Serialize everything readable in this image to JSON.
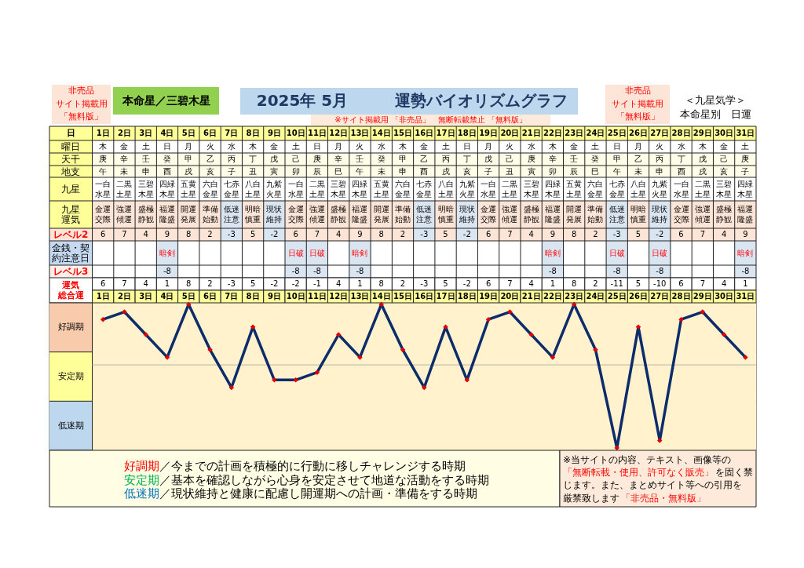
{
  "chart_data": [
    {
      "type": "other",
      "title": "2025年 5月　　　運勢バイオリズムグラフ",
      "annotations": [
        "非売品",
        "サイト掲載用",
        "「無料版」",
        "本命星／三碧木星",
        "※サイト掲載用 「非売品」　無断転載禁止 「無料版」",
        "非売品",
        "サイト掲載用",
        "「無料版」",
        "＜九星気学＞",
        "本命星別　日運"
      ]
    },
    {
      "type": "heatmap",
      "ylabel": "日",
      "categories": [
        "1日",
        "2日",
        "3日",
        "4日",
        "5日",
        "6日",
        "7日",
        "8日",
        "9日",
        "10日",
        "11日",
        "12日",
        "13日",
        "14日",
        "15日",
        "16日",
        "17日",
        "18日",
        "19日",
        "20日",
        "21日",
        "22日",
        "23日",
        "24日",
        "25日",
        "26日",
        "27日",
        "28日",
        "29日",
        "30日",
        "31日"
      ],
      "y_categories": [
        "曜日",
        "天干",
        "地支",
        "九星",
        "九星運気",
        "レベル2",
        "金銭・契約注意日",
        "レベル3"
      ],
      "cells": [
        [
          null,
          null,
          null,
          null,
          null,
          null,
          null,
          null,
          null,
          null,
          null,
          null,
          null,
          null,
          null,
          null,
          null,
          null,
          null,
          null,
          null,
          null,
          null,
          null,
          null,
          null,
          null,
          null,
          null,
          null,
          null
        ],
        [
          null,
          null,
          null,
          null,
          null,
          null,
          null,
          null,
          null,
          null,
          null,
          null,
          null,
          null,
          null,
          null,
          null,
          null,
          null,
          null,
          null,
          null,
          null,
          null,
          null,
          null,
          null,
          null,
          null,
          null,
          null
        ],
        [
          null,
          null,
          null,
          null,
          null,
          null,
          null,
          null,
          null,
          null,
          null,
          null,
          null,
          null,
          null,
          null,
          null,
          null,
          null,
          null,
          null,
          null,
          null,
          null,
          null,
          null,
          null,
          null,
          null,
          null,
          null
        ],
        [
          null,
          null,
          null,
          null,
          null,
          null,
          null,
          null,
          null,
          null,
          null,
          null,
          null,
          null,
          null,
          null,
          null,
          null,
          null,
          null,
          null,
          null,
          null,
          null,
          null,
          null,
          null,
          null,
          null,
          null,
          null
        ],
        [
          null,
          null,
          null,
          null,
          null,
          null,
          null,
          null,
          null,
          null,
          null,
          null,
          null,
          null,
          null,
          null,
          null,
          null,
          null,
          null,
          null,
          null,
          null,
          null,
          null,
          null,
          null,
          null,
          null,
          null,
          null
        ],
        [
          null,
          null,
          null,
          null,
          null,
          null,
          null,
          null,
          null,
          null,
          null,
          null,
          null,
          null,
          null,
          null,
          null,
          null,
          null,
          null,
          null,
          null,
          null,
          null,
          null,
          null,
          null,
          null,
          null,
          null,
          null
        ],
        [
          null,
          null,
          null,
          null,
          null,
          null,
          null,
          null,
          null,
          null,
          null,
          null,
          null,
          null,
          null,
          null,
          null,
          null,
          null,
          null,
          null,
          null,
          null,
          null,
          null,
          null,
          null,
          null,
          null,
          null,
          null
        ],
        [
          null,
          null,
          null,
          null,
          null,
          null,
          null,
          null,
          null,
          null,
          null,
          null,
          null,
          null,
          null,
          null,
          null,
          null,
          null,
          null,
          null,
          null,
          null,
          null,
          null,
          null,
          null,
          null,
          null,
          null,
          null
        ]
      ],
      "cell_labels": [
        [
          "木",
          "金",
          "土",
          "日",
          "月",
          "火",
          "水",
          "木",
          "金",
          "土",
          "日",
          "月",
          "火",
          "水",
          "木",
          "金",
          "土",
          "日",
          "月",
          "火",
          "水",
          "木",
          "金",
          "土",
          "日",
          "月",
          "火",
          "水",
          "木",
          "金",
          "土"
        ],
        [
          "庚",
          "辛",
          "壬",
          "癸",
          "甲",
          "乙",
          "丙",
          "丁",
          "戊",
          "己",
          "庚",
          "辛",
          "壬",
          "癸",
          "甲",
          "乙",
          "丙",
          "丁",
          "戊",
          "己",
          "庚",
          "辛",
          "壬",
          "癸",
          "甲",
          "乙",
          "丙",
          "丁",
          "戊",
          "己",
          "庚"
        ],
        [
          "午",
          "未",
          "申",
          "酉",
          "戌",
          "亥",
          "子",
          "丑",
          "寅",
          "卯",
          "辰",
          "巳",
          "午",
          "未",
          "申",
          "酉",
          "戌",
          "亥",
          "子",
          "丑",
          "寅",
          "卯",
          "辰",
          "巳",
          "午",
          "未",
          "申",
          "酉",
          "戌",
          "亥",
          "子"
        ],
        [
          "一白水星",
          "二黒土星",
          "三碧木星",
          "四緑木星",
          "五黄土星",
          "六白金星",
          "七赤金星",
          "八白土星",
          "九紫火星",
          "一白水星",
          "二黒土星",
          "三碧木星",
          "四緑木星",
          "五黄土星",
          "六白金星",
          "七赤金星",
          "八白土星",
          "九紫火星",
          "一白水星",
          "二黒土星",
          "三碧木星",
          "四緑木星",
          "五黄土星",
          "六白金星",
          "七赤金星",
          "八白土星",
          "九紫火星",
          "一白水星",
          "二黒土星",
          "三碧木星",
          "四緑木星"
        ],
        [
          "金運交際",
          "強運傾運",
          "盛極静観",
          "福運隆盛",
          "開運発展",
          "準備始動",
          "低迷注意",
          "明暗慎重",
          "現状維持",
          "金運交際",
          "強運傾運",
          "盛極静観",
          "福運隆盛",
          "開運発展",
          "準備始動",
          "低迷注意",
          "明暗慎重",
          "現状維持",
          "金運交際",
          "強運傾運",
          "盛極静観",
          "福運隆盛",
          "開運発展",
          "準備始動",
          "低迷注意",
          "明暗慎重",
          "現状維持",
          "金運交際",
          "強運傾運",
          "盛極静観",
          "福運隆盛"
        ],
        [
          "6",
          "7",
          "4",
          "9",
          "8",
          "2",
          "-3",
          "5",
          "-2",
          "6",
          "7",
          "4",
          "9",
          "8",
          "2",
          "-3",
          "5",
          "-2",
          "6",
          "7",
          "4",
          "9",
          "8",
          "2",
          "-3",
          "5",
          "-2",
          "6",
          "7",
          "4",
          "9"
        ],
        [
          null,
          null,
          null,
          "暗剣",
          null,
          null,
          null,
          null,
          null,
          "日破",
          "日破",
          null,
          "暗剣",
          null,
          null,
          null,
          null,
          null,
          null,
          null,
          null,
          "暗剣",
          null,
          null,
          "日破",
          null,
          "日破",
          null,
          null,
          null,
          "暗剣"
        ],
        [
          null,
          null,
          null,
          "-8",
          null,
          null,
          null,
          null,
          null,
          "-8",
          "-8",
          null,
          "-8",
          null,
          null,
          null,
          null,
          null,
          null,
          null,
          null,
          "-8",
          null,
          null,
          "-8",
          null,
          "-8",
          null,
          null,
          null,
          "-8"
        ]
      ],
      "colors": [
        [
          "#ffffff",
          "#ffffff",
          "#ffffff",
          "#ffffff",
          "#ffffff",
          "#ffffff",
          "#ffffff",
          "#ffffff",
          "#ffffff",
          "#ffffff",
          "#ffffff",
          "#ffffff",
          "#ffffff",
          "#ffffff",
          "#ffffff",
          "#ffffff",
          "#ffffff",
          "#ffffff",
          "#ffffff",
          "#ffffff",
          "#ffffff",
          "#ffffff",
          "#ffffff",
          "#ffffff",
          "#ffffff",
          "#ffffff",
          "#ffffff",
          "#ffffff",
          "#ffffff",
          "#ffffff",
          "#ffffff"
        ],
        [
          "#fffde8",
          "#fffde8",
          "#fffde8",
          "#fffde8",
          "#fffde8",
          "#fffde8",
          "#fffde8",
          "#fffde8",
          "#fffde8",
          "#fffde8",
          "#fffde8",
          "#fffde8",
          "#fffde8",
          "#fffde8",
          "#fffde8",
          "#fffde8",
          "#fffde8",
          "#fffde8",
          "#fffde8",
          "#fffde8",
          "#fffde8",
          "#fffde8",
          "#fffde8",
          "#fffde8",
          "#fffde8",
          "#fffde8",
          "#fffde8",
          "#fffde8",
          "#fffde8",
          "#fffde8",
          "#fffde8"
        ],
        [
          "#fffde8",
          "#fffde8",
          "#fffde8",
          "#fffde8",
          "#fffde8",
          "#fffde8",
          "#fffde8",
          "#fffde8",
          "#fffde8",
          "#fffde8",
          "#fffde8",
          "#fffde8",
          "#fffde8",
          "#fffde8",
          "#fffde8",
          "#fffde8",
          "#fffde8",
          "#fffde8",
          "#fffde8",
          "#fffde8",
          "#fffde8",
          "#fffde8",
          "#fffde8",
          "#fffde8",
          "#fffde8",
          "#fffde8",
          "#fffde8",
          "#fffde8",
          "#fffde8",
          "#fffde8",
          "#fffde8"
        ],
        [
          "#ffffff",
          "#ffffff",
          "#ffffff",
          "#ffffff",
          "#ffffff",
          "#ffffff",
          "#ffffff",
          "#ffffff",
          "#ffffff",
          "#ffffff",
          "#ffffff",
          "#ffffff",
          "#ffffff",
          "#ffffff",
          "#ffffff",
          "#ffffff",
          "#ffffff",
          "#ffffff",
          "#ffffff",
          "#ffffff",
          "#ffffff",
          "#ffffff",
          "#ffffff",
          "#ffffff",
          "#ffffff",
          "#ffffff",
          "#ffffff",
          "#ffffff",
          "#ffffff",
          "#ffffff",
          "#ffffff"
        ],
        [
          "#fce4d6",
          "#fce4d6",
          "#fce4d6",
          "#fce4d6",
          "#fce4d6",
          "#fce4d6",
          "#dae5f2",
          "#fce4d6",
          "#dae5f2",
          "#fce4d6",
          "#fce4d6",
          "#fce4d6",
          "#fce4d6",
          "#fce4d6",
          "#fce4d6",
          "#dae5f2",
          "#fce4d6",
          "#dae5f2",
          "#fce4d6",
          "#fce4d6",
          "#fce4d6",
          "#fce4d6",
          "#fce4d6",
          "#fce4d6",
          "#dae5f2",
          "#fce4d6",
          "#dae5f2",
          "#fce4d6",
          "#fce4d6",
          "#fce4d6",
          "#fce4d6"
        ],
        [
          "#fce4d6",
          "#fce4d6",
          "#fce4d6",
          "#fce4d6",
          "#fce4d6",
          "#fce4d6",
          "#dae5f2",
          "#fce4d6",
          "#dae5f2",
          "#fce4d6",
          "#fce4d6",
          "#fce4d6",
          "#fce4d6",
          "#fce4d6",
          "#fce4d6",
          "#dae5f2",
          "#fce4d6",
          "#dae5f2",
          "#fce4d6",
          "#fce4d6",
          "#fce4d6",
          "#fce4d6",
          "#fce4d6",
          "#fce4d6",
          "#dae5f2",
          "#fce4d6",
          "#dae5f2",
          "#fce4d6",
          "#fce4d6",
          "#fce4d6",
          "#fce4d6"
        ],
        [
          "#ffffff",
          "#ffffff",
          "#ffffff",
          "#dae5f2",
          "#ffffff",
          "#ffffff",
          "#ffffff",
          "#ffffff",
          "#ffffff",
          "#dae5f2",
          "#dae5f2",
          "#ffffff",
          "#dae5f2",
          "#ffffff",
          "#ffffff",
          "#ffffff",
          "#ffffff",
          "#ffffff",
          "#ffffff",
          "#ffffff",
          "#ffffff",
          "#dae5f2",
          "#ffffff",
          "#ffffff",
          "#dae5f2",
          "#ffffff",
          "#dae5f2",
          "#ffffff",
          "#ffffff",
          "#ffffff",
          "#dae5f2"
        ],
        [
          "#ffffff",
          "#ffffff",
          "#ffffff",
          "#dae5f2",
          "#ffffff",
          "#ffffff",
          "#ffffff",
          "#ffffff",
          "#ffffff",
          "#dae5f2",
          "#dae5f2",
          "#ffffff",
          "#dae5f2",
          "#ffffff",
          "#ffffff",
          "#ffffff",
          "#ffffff",
          "#ffffff",
          "#ffffff",
          "#ffffff",
          "#ffffff",
          "#dae5f2",
          "#ffffff",
          "#ffffff",
          "#dae5f2",
          "#ffffff",
          "#dae5f2",
          "#ffffff",
          "#ffffff",
          "#ffffff",
          "#dae5f2"
        ]
      ]
    },
    {
      "type": "line",
      "ylabel": "運気総合運",
      "categories": [
        "1日",
        "2日",
        "3日",
        "4日",
        "5日",
        "6日",
        "7日",
        "8日",
        "9日",
        "10日",
        "11日",
        "12日",
        "13日",
        "14日",
        "15日",
        "16日",
        "17日",
        "18日",
        "19日",
        "20日",
        "21日",
        "22日",
        "23日",
        "24日",
        "25日",
        "26日",
        "27日",
        "28日",
        "29日",
        "30日",
        "31日"
      ],
      "series": [
        {
          "color": "#0c2c6b",
          "colors": [
            "#e00000",
            "#e00000",
            "#e00000",
            "#e00000",
            "#e00000",
            "#e00000",
            "#e00000",
            "#e00000",
            "#e00000",
            "#e00000",
            "#e00000",
            "#e00000",
            "#e00000",
            "#e00000",
            "#e00000",
            "#e00000",
            "#e00000",
            "#e00000",
            "#e00000",
            "#e00000",
            "#e00000",
            "#e00000",
            "#e00000",
            "#e00000",
            "#e00000",
            "#e00000",
            "#e00000",
            "#e00000",
            "#e00000",
            "#e00000",
            "#e00000"
          ],
          "values": [
            6,
            7,
            4,
            1,
            8,
            2,
            -3,
            5,
            -2,
            -2,
            -1,
            4,
            1,
            8,
            2,
            -3,
            5,
            -2,
            6,
            7,
            4,
            1,
            8,
            2,
            -11,
            5,
            -10,
            6,
            7,
            4,
            1
          ]
        }
      ],
      "data_labels": true,
      "marker": "diamond",
      "line_style": "solid",
      "ylim": [
        -11.3,
        8.2
      ],
      "tick_labels": "x",
      "ref_lines": [
        {
          "axis": "y",
          "value": 0,
          "color": "#c9c0ae"
        }
      ],
      "bands": [
        {
          "axis": "y",
          "from": 1.7,
          "to": 8.2,
          "label": "好調期",
          "color": "#f8cbad"
        },
        {
          "axis": "y",
          "from": -4.8,
          "to": 1.7,
          "label": "安定期",
          "color": "#ffff99"
        },
        {
          "axis": "y",
          "from": -11.3,
          "to": -4.8,
          "label": "低迷期",
          "color": "#bdd7ee"
        }
      ],
      "annotations": [
        "好調期",
        "／今までの計画を積極的に行動に移しチャレンジする時期",
        "安定期",
        "／基本を確認しながら心身を安定させて地道な活動をする時期",
        "低迷期",
        "／現状維持と健康に配慮し開運期への計画・準備をする時期",
        "※当サイトの内容、テキスト、画像等の",
        "「無断転載・使用、許可なく販売」",
        "を固く禁",
        "じます。また、まとめサイト等への引用を",
        "厳禁致します",
        "「非売品・無料版」"
      ]
    }
  ]
}
